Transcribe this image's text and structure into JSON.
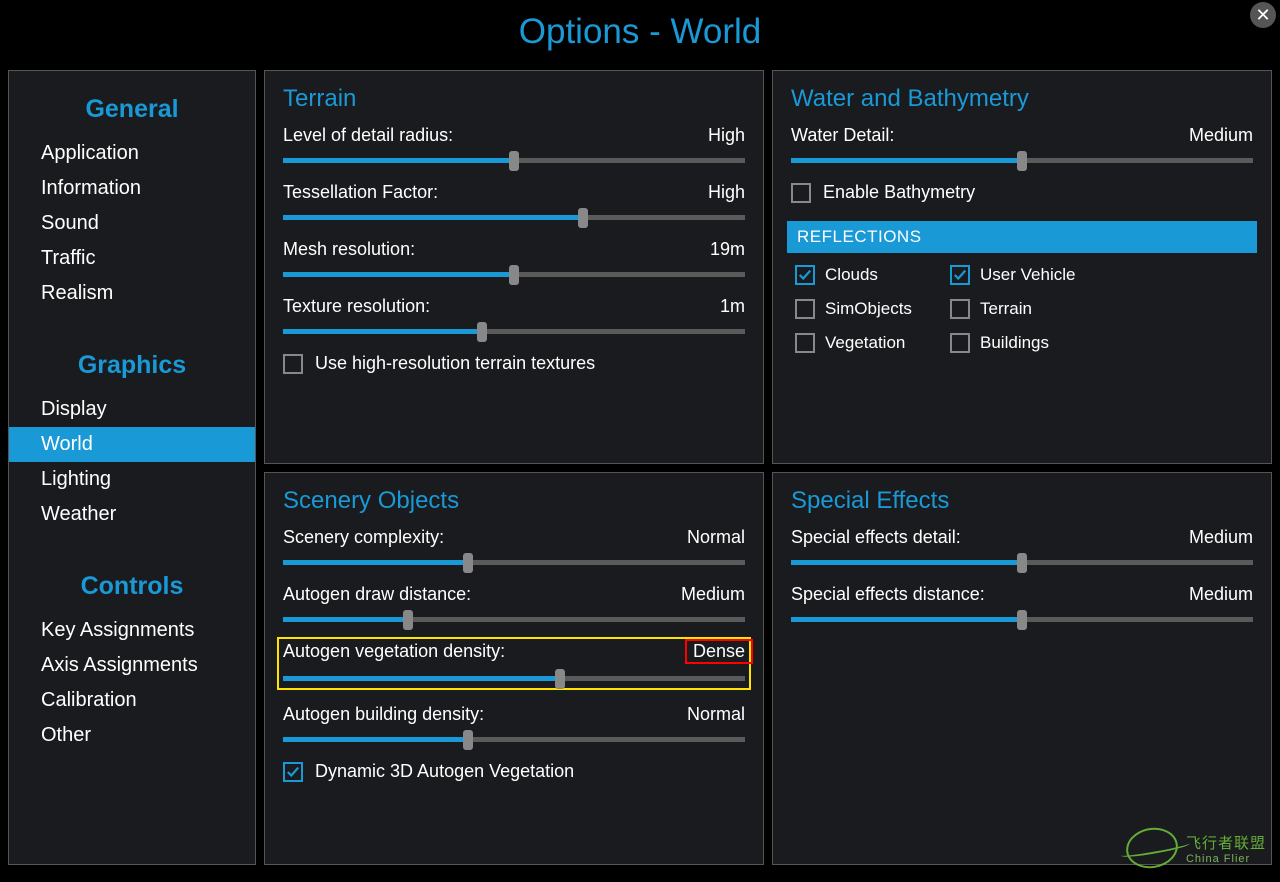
{
  "colors": {
    "accent": "#1999d6",
    "bg_panel": "#191b1e",
    "slider_fill": "#1999d6",
    "slider_track": "#5a5a5a",
    "highlight_yellow": "#ffe400",
    "highlight_red": "#ff0000"
  },
  "title": "Options - World",
  "sidebar": {
    "groups": [
      {
        "header": "General",
        "items": [
          {
            "label": "Application",
            "active": false
          },
          {
            "label": "Information",
            "active": false
          },
          {
            "label": "Sound",
            "active": false
          },
          {
            "label": "Traffic",
            "active": false
          },
          {
            "label": "Realism",
            "active": false
          }
        ]
      },
      {
        "header": "Graphics",
        "items": [
          {
            "label": "Display",
            "active": false
          },
          {
            "label": "World",
            "active": true
          },
          {
            "label": "Lighting",
            "active": false
          },
          {
            "label": "Weather",
            "active": false
          }
        ]
      },
      {
        "header": "Controls",
        "items": [
          {
            "label": "Key Assignments",
            "active": false
          },
          {
            "label": "Axis Assignments",
            "active": false
          },
          {
            "label": "Calibration",
            "active": false
          },
          {
            "label": "Other",
            "active": false
          }
        ]
      }
    ]
  },
  "terrain": {
    "title": "Terrain",
    "settings": [
      {
        "label": "Level of detail radius:",
        "value": "High",
        "pct": 50
      },
      {
        "label": "Tessellation Factor:",
        "value": "High",
        "pct": 65
      },
      {
        "label": "Mesh resolution:",
        "value": "19m",
        "pct": 50
      },
      {
        "label": "Texture resolution:",
        "value": "1m",
        "pct": 43
      }
    ],
    "checkbox": {
      "label": "Use high-resolution terrain textures",
      "checked": false
    }
  },
  "scenery": {
    "title": "Scenery Objects",
    "settings": [
      {
        "label": "Scenery complexity:",
        "value": "Normal",
        "pct": 40
      },
      {
        "label": "Autogen draw distance:",
        "value": "Medium",
        "pct": 27
      },
      {
        "label": "Autogen vegetation density:",
        "value": "Dense",
        "pct": 60,
        "highlight": true
      },
      {
        "label": "Autogen building density:",
        "value": "Normal",
        "pct": 40
      }
    ],
    "checkbox": {
      "label": "Dynamic 3D Autogen Vegetation",
      "checked": true
    }
  },
  "water": {
    "title": "Water and Bathymetry",
    "settings": [
      {
        "label": "Water Detail:",
        "value": "Medium",
        "pct": 50
      }
    ],
    "checkbox": {
      "label": "Enable Bathymetry",
      "checked": false
    },
    "reflections": {
      "header": "REFLECTIONS",
      "items": [
        {
          "label": "Clouds",
          "checked": true
        },
        {
          "label": "User Vehicle",
          "checked": true
        },
        {
          "label": "SimObjects",
          "checked": false
        },
        {
          "label": "Terrain",
          "checked": false
        },
        {
          "label": "Vegetation",
          "checked": false
        },
        {
          "label": "Buildings",
          "checked": false
        }
      ]
    }
  },
  "special": {
    "title": "Special Effects",
    "settings": [
      {
        "label": "Special effects detail:",
        "value": "Medium",
        "pct": 50
      },
      {
        "label": "Special effects distance:",
        "value": "Medium",
        "pct": 50
      }
    ]
  },
  "watermark": {
    "line1": "飞行者联盟",
    "line2": "China Flier"
  }
}
